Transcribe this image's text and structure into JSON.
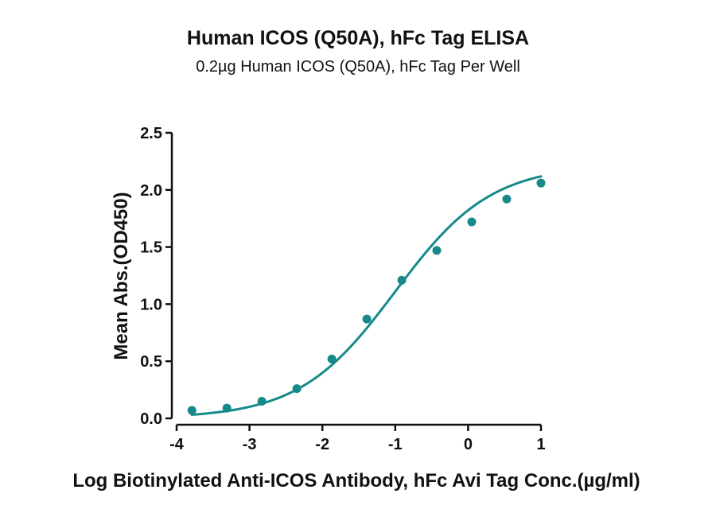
{
  "chart_data": {
    "type": "scatter",
    "title": "Human ICOS (Q50A), hFc Tag ELISA",
    "subtitle": "0.2µg Human ICOS (Q50A), hFc Tag Per Well",
    "xlabel": "Log Biotinylated Anti-ICOS Antibody, hFc Avi Tag Conc.(µg/ml)",
    "ylabel": "Mean Abs.(OD450)",
    "xlim": [
      -4,
      1
    ],
    "ylim": [
      0,
      2.5
    ],
    "x_ticks": [
      -4,
      -3,
      -2,
      -1,
      0,
      1
    ],
    "y_ticks": [
      0.0,
      0.5,
      1.0,
      1.5,
      2.0,
      2.5
    ],
    "x_tick_labels": [
      "-4",
      "-3",
      "-2",
      "-1",
      "0",
      "1"
    ],
    "y_tick_labels": [
      "0.0",
      "0.5",
      "1.0",
      "1.5",
      "2.0",
      "2.5"
    ],
    "grid": false,
    "series": [
      {
        "color": "#17898a",
        "points": [
          {
            "x": -3.79,
            "y": 0.07
          },
          {
            "x": -3.31,
            "y": 0.09
          },
          {
            "x": -2.83,
            "y": 0.15
          },
          {
            "x": -2.35,
            "y": 0.26
          },
          {
            "x": -1.87,
            "y": 0.52
          },
          {
            "x": -1.39,
            "y": 0.87
          },
          {
            "x": -0.91,
            "y": 1.21
          },
          {
            "x": -0.43,
            "y": 1.47
          },
          {
            "x": 0.05,
            "y": 1.72
          },
          {
            "x": 0.53,
            "y": 1.92
          },
          {
            "x": 1.0,
            "y": 2.06
          }
        ],
        "fit": {
          "model": "4PL",
          "bottom": 0.0,
          "top": 2.22,
          "log_ec50": -1.0,
          "hill": 0.66,
          "x_range": [
            -3.79,
            1.0
          ]
        }
      }
    ]
  }
}
